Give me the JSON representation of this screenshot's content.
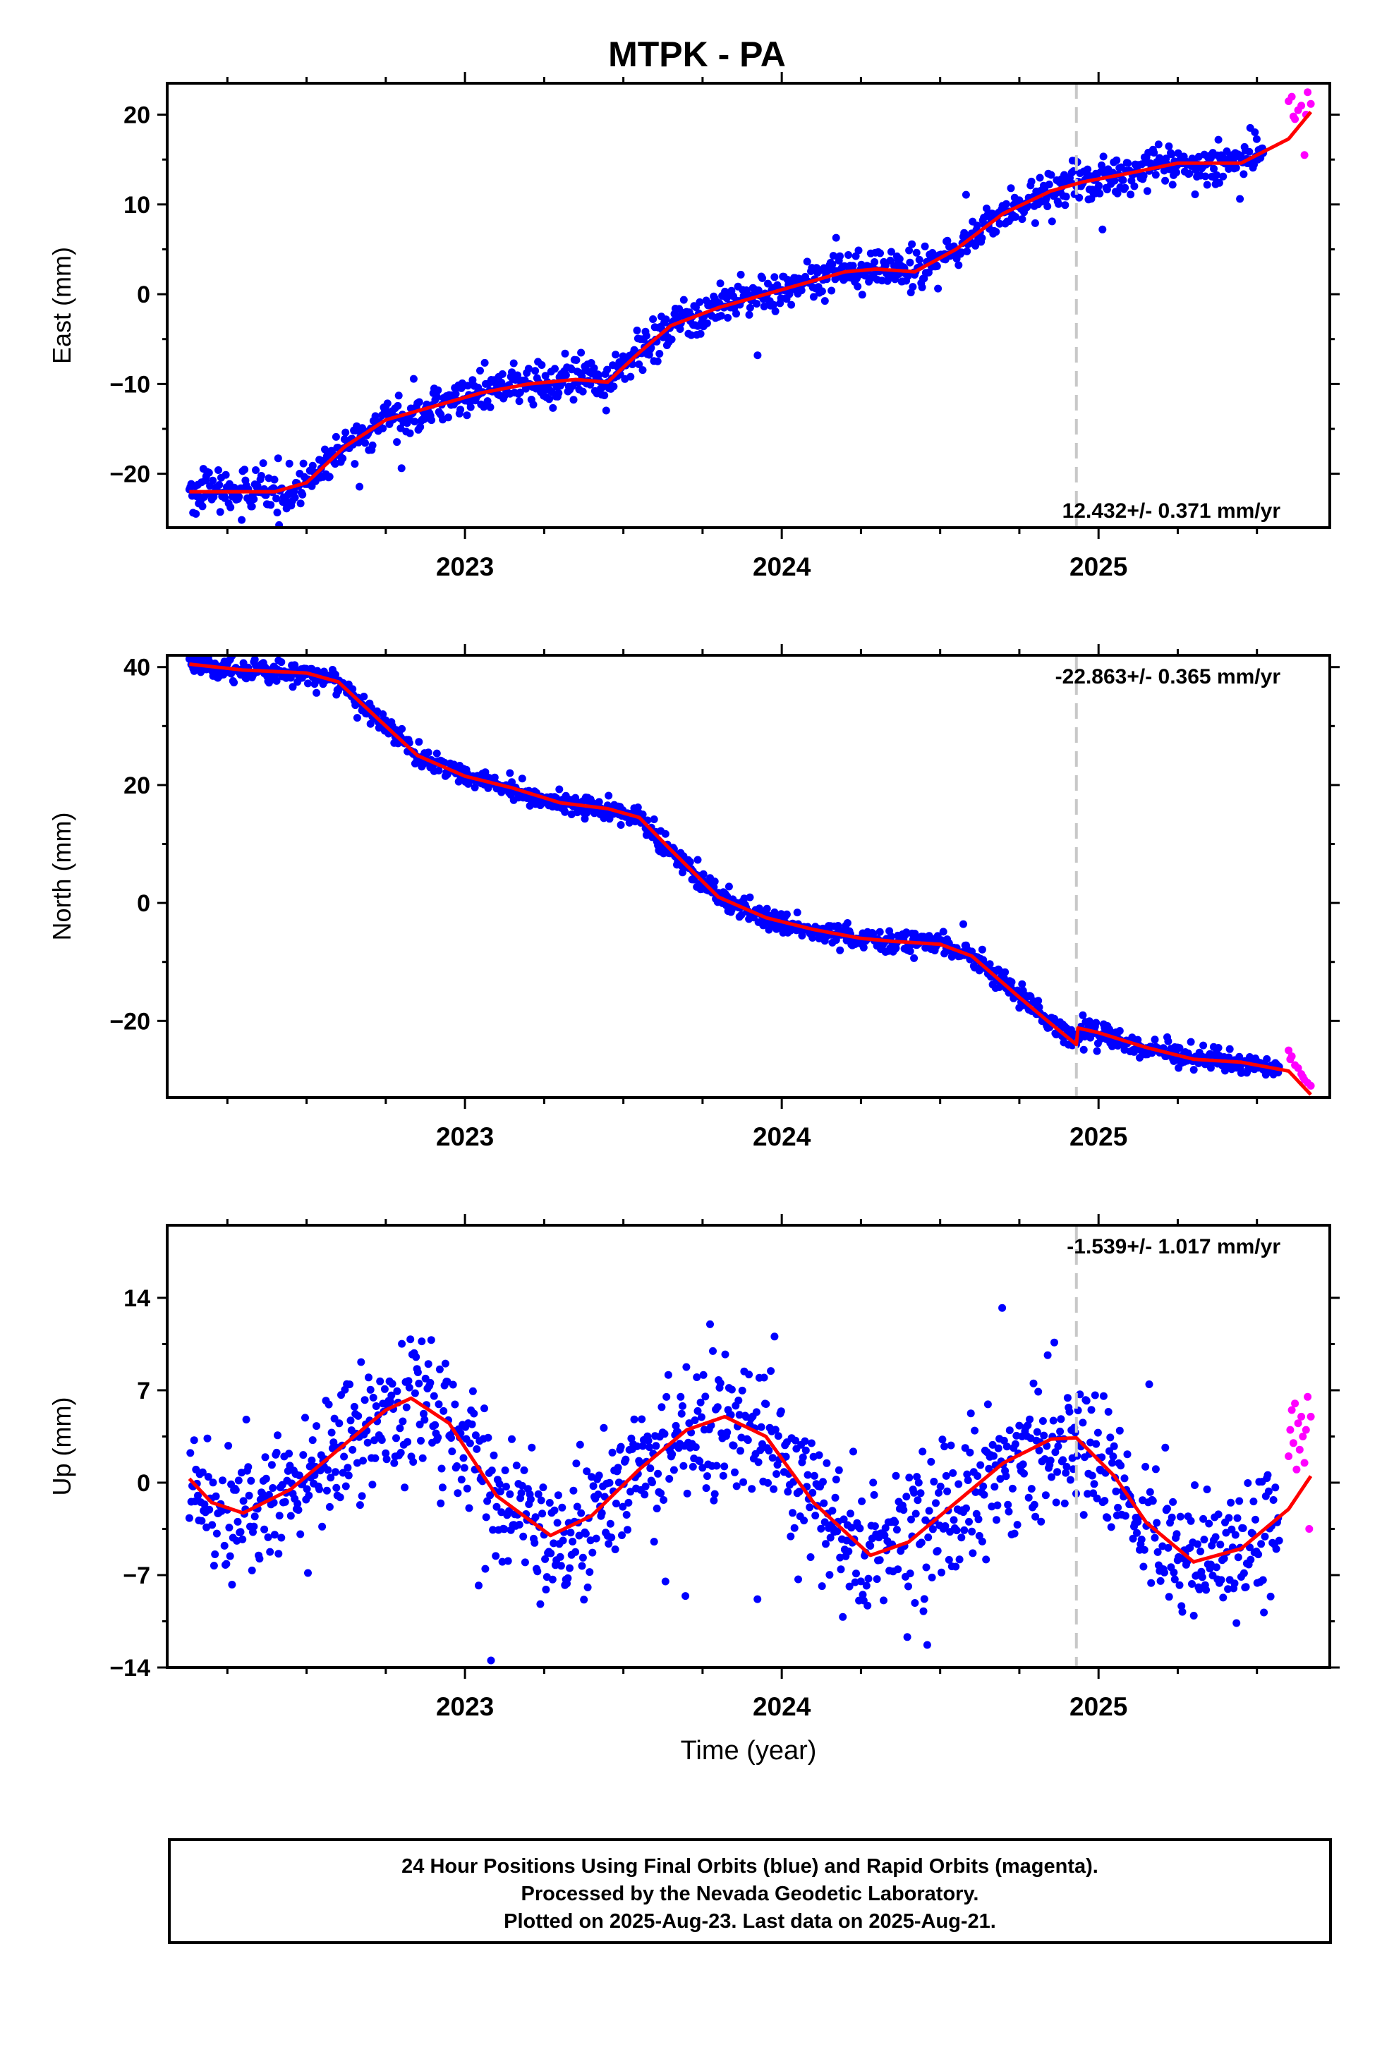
{
  "title": "MTPK - PA",
  "footer": {
    "line1": "24 Hour Positions Using Final Orbits (blue) and Rapid Orbits (magenta).",
    "line2": "Processed by the Nevada Geodetic Laboratory.",
    "line3": "Plotted on 2025-Aug-23. Last data on 2025-Aug-21."
  },
  "colors": {
    "final": "#0000ff",
    "rapid": "#ff00ff",
    "model": "#ff0000",
    "break_line": "#c8c8c8",
    "frame": "#000000"
  },
  "chart_data": [
    {
      "type": "scatter",
      "title": "",
      "xlabel": "",
      "ylabel": "East (mm)",
      "xlim": [
        2022.06,
        2025.73
      ],
      "ylim": [
        -26,
        23.5
      ],
      "yticks": [
        -20,
        -10,
        0,
        10,
        20
      ],
      "ytick_labels": [
        "−20",
        "−10",
        "0",
        "10",
        "20"
      ],
      "xticks": [
        2023,
        2024,
        2025
      ],
      "xtick_labels": [
        "2023",
        "2024",
        "2025"
      ],
      "rate_label": "12.432+/- 0.371 mm/yr",
      "rate_position": "bottom-right",
      "break_epoch": 2024.93,
      "series": [
        {
          "name": "Final Orbits",
          "color": "#0000ff",
          "x_range": [
            2022.13,
            2025.52
          ],
          "model_x": [
            2022.13,
            2022.4,
            2022.5,
            2022.62,
            2022.75,
            2022.9,
            2023.05,
            2023.2,
            2023.35,
            2023.45,
            2023.55,
            2023.65,
            2023.8,
            2023.95,
            2024.1,
            2024.2,
            2024.3,
            2024.42,
            2024.55,
            2024.7,
            2024.85,
            2024.95,
            2025.1,
            2025.25,
            2025.35,
            2025.45,
            2025.6,
            2025.67
          ],
          "model_y": [
            -22,
            -22,
            -21,
            -17,
            -14,
            -12.5,
            -11,
            -10,
            -9.5,
            -9.8,
            -6.5,
            -3.5,
            -1.5,
            0,
            1.5,
            2.5,
            2.8,
            2.5,
            5,
            9,
            11.5,
            12.5,
            13.5,
            14.6,
            14.6,
            14.6,
            17.3,
            20.3
          ],
          "scatter_sd": 1.1
        },
        {
          "name": "Rapid Orbits",
          "color": "#ff00ff",
          "x": [
            2025.6,
            2025.61,
            2025.62,
            2025.63,
            2025.64,
            2025.65,
            2025.66,
            2025.67,
            2025.655,
            2025.615
          ],
          "y": [
            21.5,
            22,
            19.5,
            20.5,
            21,
            15.5,
            22.5,
            21.2,
            20,
            19.8
          ]
        }
      ]
    },
    {
      "type": "scatter",
      "title": "",
      "xlabel": "",
      "ylabel": "North (mm)",
      "xlim": [
        2022.06,
        2025.73
      ],
      "ylim": [
        -33,
        42
      ],
      "yticks": [
        -20,
        0,
        20,
        40
      ],
      "ytick_labels": [
        "−20",
        "0",
        "20",
        "40"
      ],
      "xticks": [
        2023,
        2024,
        2025
      ],
      "xtick_labels": [
        "2023",
        "2024",
        "2025"
      ],
      "rate_label": "-22.863+/- 0.365 mm/yr",
      "rate_position": "top-right",
      "break_epoch": 2024.93,
      "series": [
        {
          "name": "Final Orbits",
          "color": "#0000ff",
          "x_range": [
            2022.13,
            2025.57
          ],
          "model_x": [
            2022.13,
            2022.3,
            2022.5,
            2022.6,
            2022.75,
            2022.85,
            2023.0,
            2023.15,
            2023.3,
            2023.45,
            2023.55,
            2023.65,
            2023.8,
            2023.95,
            2024.1,
            2024.25,
            2024.35,
            2024.5,
            2024.6,
            2024.75,
            2024.85,
            2024.93,
            2024.935,
            2025.0,
            2025.15,
            2025.3,
            2025.45,
            2025.6,
            2025.67
          ],
          "model_y": [
            40.5,
            39.5,
            39,
            37.5,
            30,
            25,
            21.5,
            19.5,
            17,
            16,
            14.5,
            9,
            1,
            -2.5,
            -4.5,
            -6,
            -6.5,
            -7,
            -9,
            -16,
            -20.5,
            -24,
            -21.2,
            -22,
            -24.5,
            -26.5,
            -27,
            -28.5,
            -32.5
          ],
          "scatter_sd": 0.9
        },
        {
          "name": "Rapid Orbits",
          "color": "#ff00ff",
          "x": [
            2025.6,
            2025.61,
            2025.62,
            2025.63,
            2025.64,
            2025.65,
            2025.66,
            2025.67,
            2025.605,
            2025.645
          ],
          "y": [
            -25,
            -26,
            -27.5,
            -28,
            -29,
            -30,
            -30.5,
            -31,
            -26.5,
            -29.5
          ]
        }
      ]
    },
    {
      "type": "scatter",
      "title": "",
      "xlabel": "Time (year)",
      "ylabel": "Up (mm)",
      "xlim": [
        2022.06,
        2025.73
      ],
      "ylim": [
        -14,
        19.5
      ],
      "yticks": [
        -14,
        -7,
        0,
        7,
        14
      ],
      "ytick_labels": [
        "−14",
        "−7",
        "0",
        "7",
        "14"
      ],
      "xticks": [
        2023,
        2024,
        2025
      ],
      "xtick_labels": [
        "2023",
        "2024",
        "2025"
      ],
      "rate_label": "-1.539+/- 1.017 mm/yr",
      "rate_position": "top-right",
      "break_epoch": 2024.93,
      "series": [
        {
          "name": "Final Orbits",
          "color": "#0000ff",
          "x_range": [
            2022.13,
            2025.57
          ],
          "model_x": [
            2022.13,
            2022.2,
            2022.3,
            2022.45,
            2022.6,
            2022.75,
            2022.83,
            2022.95,
            2023.1,
            2023.27,
            2023.4,
            2023.55,
            2023.7,
            2023.82,
            2023.95,
            2024.1,
            2024.28,
            2024.4,
            2024.55,
            2024.7,
            2024.85,
            2024.93,
            2025.05,
            2025.15,
            2025.3,
            2025.45,
            2025.6,
            2025.67
          ],
          "model_y": [
            0.3,
            -1.5,
            -2.3,
            -0.5,
            2.5,
            5.5,
            6.4,
            4.5,
            -1,
            -4,
            -2.5,
            1,
            4,
            5,
            3.5,
            -1.5,
            -5.5,
            -4.5,
            -1.5,
            1.5,
            3.3,
            3.4,
            0.5,
            -3,
            -6,
            -5,
            -2,
            0.5
          ],
          "scatter_sd": 2.6
        },
        {
          "name": "Rapid Orbits",
          "color": "#ff00ff",
          "x": [
            2025.6,
            2025.605,
            2025.61,
            2025.615,
            2025.62,
            2025.625,
            2025.63,
            2025.635,
            2025.64,
            2025.645,
            2025.65,
            2025.655,
            2025.66,
            2025.665,
            2025.67
          ],
          "y": [
            2,
            4,
            5.5,
            3,
            6,
            1,
            4.5,
            2.5,
            5,
            3.5,
            1.5,
            4,
            6.5,
            -3.5,
            5
          ]
        }
      ]
    }
  ]
}
